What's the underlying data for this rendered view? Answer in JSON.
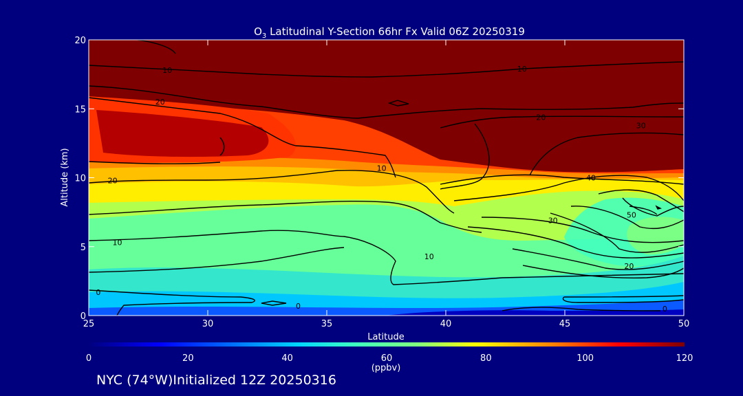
{
  "chart_data": {
    "type": "heatmap",
    "title_prefix": "O",
    "title_sub": "3",
    "title_rest": " Latitudinal Y-Section 66hr  Fx Valid 06Z 20250319",
    "xlabel": "Latitude",
    "ylabel": "Altitude (km)",
    "xlim": [
      25,
      50
    ],
    "ylim": [
      0,
      20
    ],
    "x_ticks": [
      "25",
      "30",
      "35",
      "40",
      "45",
      "50"
    ],
    "y_ticks": [
      "0",
      "5",
      "10",
      "15",
      "20"
    ],
    "colorbar": {
      "min": 0,
      "max": 120,
      "ticks": [
        "0",
        "20",
        "40",
        "60",
        "80",
        "100",
        "120"
      ],
      "units": "(ppbv)"
    },
    "contour_labels": [
      {
        "text": "10",
        "x": 28.3,
        "y": 17.8
      },
      {
        "text": "10",
        "x": 43.2,
        "y": 17.9
      },
      {
        "text": "20",
        "x": 28.0,
        "y": 15.5
      },
      {
        "text": "20",
        "x": 44.0,
        "y": 14.4
      },
      {
        "text": "30",
        "x": 48.2,
        "y": 13.8
      },
      {
        "text": "20",
        "x": 26.0,
        "y": 9.8
      },
      {
        "text": "10",
        "x": 37.3,
        "y": 10.7
      },
      {
        "text": "40",
        "x": 46.1,
        "y": 10.0
      },
      {
        "text": "50",
        "x": 47.8,
        "y": 7.3
      },
      {
        "text": "30",
        "x": 44.5,
        "y": 6.9
      },
      {
        "text": "10",
        "x": 26.2,
        "y": 5.3
      },
      {
        "text": "10",
        "x": 39.3,
        "y": 4.3
      },
      {
        "text": "20",
        "x": 47.7,
        "y": 3.6
      },
      {
        "text": "0",
        "x": 25.4,
        "y": 1.7
      },
      {
        "text": "0",
        "x": 33.8,
        "y": 0.7
      },
      {
        "text": "0",
        "x": 49.2,
        "y": 0.5
      }
    ]
  },
  "footer": "NYC (74°W)Initialized 12Z 20250316"
}
